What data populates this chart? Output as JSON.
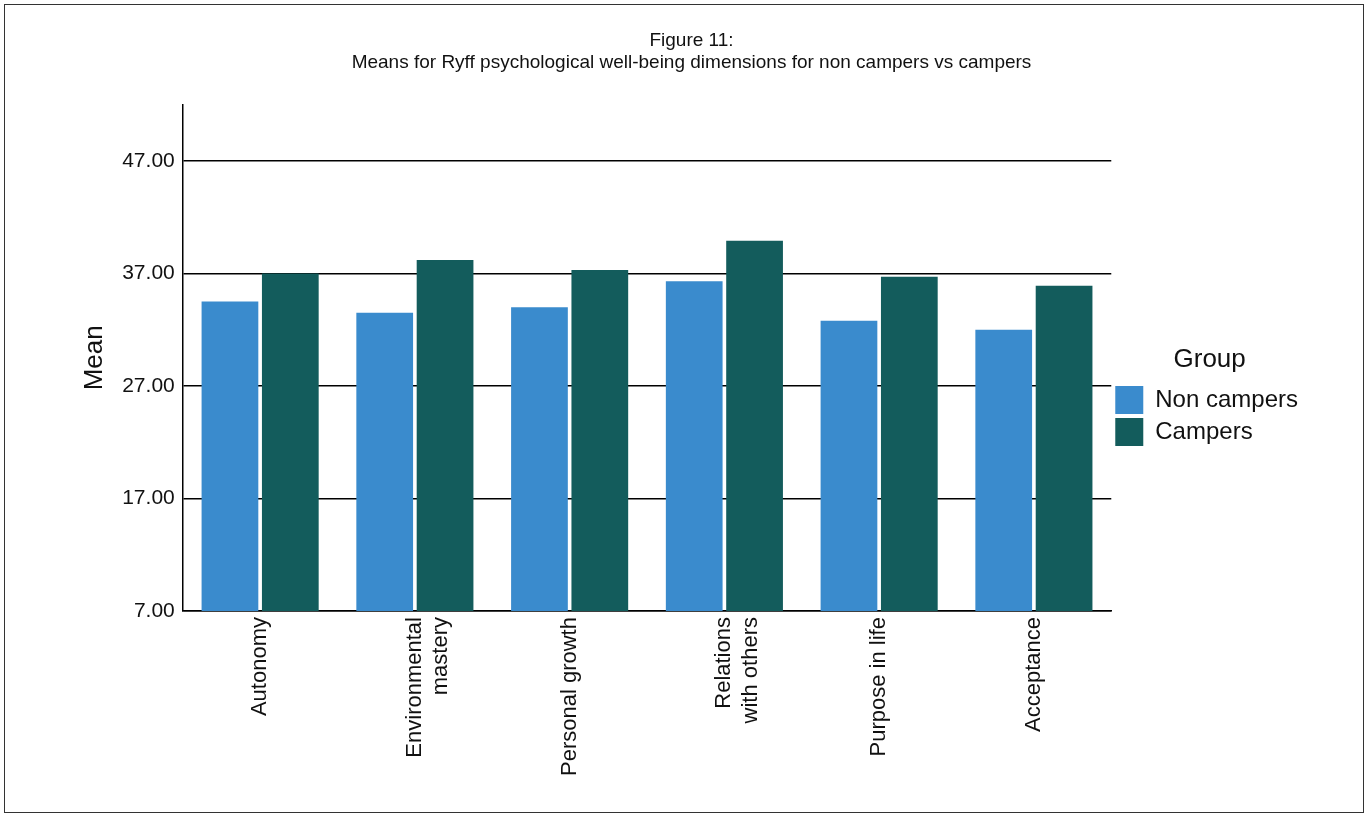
{
  "chart_data": {
    "type": "bar",
    "title": "Figure 11:\nMeans for Ryff psychological well-being dimensions for non campers vs campers",
    "ylabel": "Mean",
    "legend_title": "Group",
    "legend": "right",
    "categories": [
      "Autonomy",
      "Environmental mastery",
      "Personal growth",
      "Relations with others",
      "Purpose in life",
      "Acceptance"
    ],
    "series": [
      {
        "name": "Non campers",
        "color": "#3a8bcd",
        "values": [
          34.5,
          33.5,
          34.0,
          36.3,
          32.8,
          32.0
        ]
      },
      {
        "name": "Campers",
        "color": "#135c5c",
        "values": [
          37.0,
          38.2,
          37.3,
          39.9,
          36.7,
          35.9
        ]
      }
    ],
    "ylim": [
      7,
      52
    ],
    "yticks": [
      {
        "value": 7,
        "label": "7.00"
      },
      {
        "value": 17,
        "label": "17.00"
      },
      {
        "value": 27,
        "label": "27.00"
      },
      {
        "value": 37,
        "label": "37.00"
      },
      {
        "value": 47,
        "label": "47.00"
      }
    ],
    "grid": "y"
  }
}
